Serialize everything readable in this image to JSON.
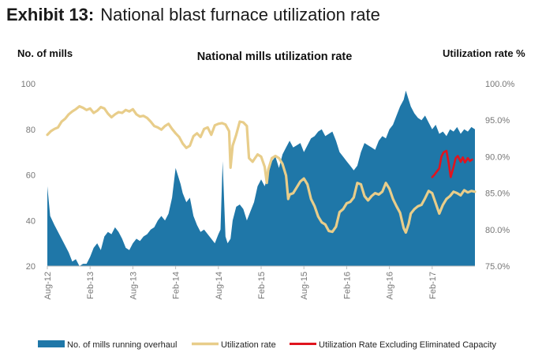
{
  "exhibit_label": "Exhibit 13:",
  "exhibit_title": "National blast furnace utilization rate",
  "chart_data": {
    "type": "area+line",
    "title": "National mills utilization rate",
    "left_axis_label": "No. of mills",
    "right_axis_label": "Utilization rate %",
    "left_ylim": [
      20,
      100
    ],
    "left_ticks": [
      "100",
      "80",
      "60",
      "40",
      "20"
    ],
    "right_ylim": [
      75,
      100
    ],
    "right_ticks": [
      "100.0%",
      "95.0%",
      "90.0%",
      "85.0%",
      "80.0%",
      "75.0%"
    ],
    "x_range": [
      0,
      60
    ],
    "x_ticks": [
      {
        "x": 0,
        "label": "Aug-12"
      },
      {
        "x": 6,
        "label": "Feb-13"
      },
      {
        "x": 12,
        "label": "Aug-13"
      },
      {
        "x": 18,
        "label": "Feb-14"
      },
      {
        "x": 24,
        "label": "Aug-14"
      },
      {
        "x": 30,
        "label": "Feb-15"
      },
      {
        "x": 36,
        "label": "Aug-15"
      },
      {
        "x": 42,
        "label": "Feb-16"
      },
      {
        "x": 48,
        "label": "Aug-16"
      },
      {
        "x": 54,
        "label": "Feb-17"
      }
    ],
    "series": [
      {
        "name": "No. of mills running overhaul",
        "axis": "left",
        "kind": "area",
        "color": "#1f77a8",
        "points": [
          [
            0,
            55
          ],
          [
            0.4,
            42
          ],
          [
            1,
            38
          ],
          [
            2,
            32
          ],
          [
            3,
            26
          ],
          [
            3.5,
            22
          ],
          [
            4,
            23
          ],
          [
            4.5,
            20
          ],
          [
            5,
            21
          ],
          [
            5.5,
            21
          ],
          [
            6,
            24
          ],
          [
            6.5,
            28
          ],
          [
            7,
            30
          ],
          [
            7.5,
            27
          ],
          [
            8,
            33
          ],
          [
            8.5,
            35
          ],
          [
            9,
            34
          ],
          [
            9.5,
            37
          ],
          [
            10,
            35
          ],
          [
            10.5,
            32
          ],
          [
            11,
            28
          ],
          [
            11.5,
            27
          ],
          [
            12,
            30
          ],
          [
            12.5,
            32
          ],
          [
            13,
            31
          ],
          [
            13.5,
            33
          ],
          [
            14,
            34
          ],
          [
            14.5,
            36
          ],
          [
            15,
            37
          ],
          [
            15.5,
            40
          ],
          [
            16,
            42
          ],
          [
            16.5,
            40
          ],
          [
            17,
            43
          ],
          [
            17.5,
            50
          ],
          [
            18,
            63
          ],
          [
            18.3,
            60
          ],
          [
            18.7,
            56
          ],
          [
            19,
            52
          ],
          [
            19.5,
            48
          ],
          [
            20,
            50
          ],
          [
            20.5,
            42
          ],
          [
            21,
            38
          ],
          [
            21.5,
            35
          ],
          [
            22,
            36
          ],
          [
            22.5,
            34
          ],
          [
            23,
            32
          ],
          [
            23.5,
            30
          ],
          [
            24,
            34
          ],
          [
            24.3,
            36
          ],
          [
            24.6,
            66
          ],
          [
            25,
            33
          ],
          [
            25.3,
            30
          ],
          [
            25.7,
            32
          ],
          [
            26,
            40
          ],
          [
            26.5,
            46
          ],
          [
            27,
            47
          ],
          [
            27.5,
            45
          ],
          [
            28,
            40
          ],
          [
            28.5,
            44
          ],
          [
            29,
            48
          ],
          [
            29.5,
            55
          ],
          [
            30,
            58
          ],
          [
            30.5,
            55
          ],
          [
            31,
            60
          ],
          [
            31.5,
            66
          ],
          [
            32,
            68
          ],
          [
            32.5,
            63
          ],
          [
            33,
            69
          ],
          [
            33.5,
            72
          ],
          [
            34,
            75
          ],
          [
            34.5,
            72
          ],
          [
            35,
            73
          ],
          [
            35.5,
            74
          ],
          [
            36,
            70
          ],
          [
            36.5,
            73
          ],
          [
            37,
            76
          ],
          [
            37.5,
            77
          ],
          [
            38,
            79
          ],
          [
            38.5,
            80
          ],
          [
            39,
            77
          ],
          [
            39.5,
            78
          ],
          [
            40,
            79
          ],
          [
            40.5,
            75
          ],
          [
            41,
            70
          ],
          [
            41.5,
            68
          ],
          [
            42,
            66
          ],
          [
            42.5,
            64
          ],
          [
            43,
            62
          ],
          [
            43.5,
            64
          ],
          [
            44,
            70
          ],
          [
            44.5,
            74
          ],
          [
            45,
            73
          ],
          [
            45.5,
            72
          ],
          [
            46,
            71
          ],
          [
            46.5,
            75
          ],
          [
            47,
            77
          ],
          [
            47.5,
            76
          ],
          [
            48,
            80
          ],
          [
            48.5,
            82
          ],
          [
            49,
            86
          ],
          [
            49.5,
            90
          ],
          [
            50,
            93
          ],
          [
            50.3,
            97
          ],
          [
            50.7,
            93
          ],
          [
            51,
            90
          ],
          [
            51.5,
            87
          ],
          [
            52,
            85
          ],
          [
            52.5,
            84
          ],
          [
            53,
            86
          ],
          [
            53.5,
            83
          ],
          [
            54,
            80
          ],
          [
            54.5,
            82
          ],
          [
            55,
            78
          ],
          [
            55.5,
            79
          ],
          [
            56,
            77
          ],
          [
            56.5,
            80
          ],
          [
            57,
            79
          ],
          [
            57.5,
            81
          ],
          [
            58,
            78
          ],
          [
            58.5,
            80
          ],
          [
            59,
            79
          ],
          [
            59.5,
            81
          ],
          [
            60,
            80
          ]
        ]
      },
      {
        "name": "Utilization rate",
        "axis": "right",
        "kind": "line",
        "color": "#e8cd8a",
        "points": [
          [
            0,
            93
          ],
          [
            0.5,
            93.5
          ],
          [
            1,
            93.8
          ],
          [
            1.5,
            94
          ],
          [
            2,
            94.8
          ],
          [
            2.5,
            95.2
          ],
          [
            3,
            95.8
          ],
          [
            3.5,
            96.2
          ],
          [
            4,
            96.5
          ],
          [
            4.5,
            96.9
          ],
          [
            5,
            96.7
          ],
          [
            5.5,
            96.4
          ],
          [
            6,
            96.6
          ],
          [
            6.5,
            96.0
          ],
          [
            7,
            96.3
          ],
          [
            7.5,
            96.8
          ],
          [
            8,
            96.6
          ],
          [
            8.5,
            95.9
          ],
          [
            9,
            95.4
          ],
          [
            9.5,
            95.8
          ],
          [
            10,
            96.1
          ],
          [
            10.5,
            96.0
          ],
          [
            11,
            96.4
          ],
          [
            11.5,
            96.2
          ],
          [
            12,
            96.5
          ],
          [
            12.5,
            95.8
          ],
          [
            13,
            95.5
          ],
          [
            13.5,
            95.6
          ],
          [
            14,
            95.3
          ],
          [
            14.5,
            94.8
          ],
          [
            15,
            94.2
          ],
          [
            15.5,
            94.0
          ],
          [
            16,
            93.7
          ],
          [
            16.5,
            94.2
          ],
          [
            17,
            94.5
          ],
          [
            17.5,
            93.8
          ],
          [
            18,
            93.2
          ],
          [
            18.5,
            92.7
          ],
          [
            19,
            91.8
          ],
          [
            19.5,
            91.2
          ],
          [
            20,
            91.5
          ],
          [
            20.5,
            92.8
          ],
          [
            21,
            93.2
          ],
          [
            21.5,
            92.7
          ],
          [
            22,
            93.8
          ],
          [
            22.5,
            94.0
          ],
          [
            23,
            93.0
          ],
          [
            23.5,
            94.3
          ],
          [
            24,
            94.5
          ],
          [
            24.5,
            94.6
          ],
          [
            25,
            94.4
          ],
          [
            25.5,
            93.5
          ],
          [
            25.7,
            88.5
          ],
          [
            26,
            91.5
          ],
          [
            26.5,
            93.0
          ],
          [
            27,
            94.8
          ],
          [
            27.5,
            94.7
          ],
          [
            28,
            94.2
          ],
          [
            28.3,
            89.8
          ],
          [
            28.8,
            89.3
          ],
          [
            29,
            89.6
          ],
          [
            29.5,
            90.3
          ],
          [
            30,
            90.0
          ],
          [
            30.5,
            88.6
          ],
          [
            30.8,
            86.4
          ],
          [
            31,
            88.2
          ],
          [
            31.5,
            89.8
          ],
          [
            32,
            90.1
          ],
          [
            32.5,
            89.8
          ],
          [
            33,
            89.0
          ],
          [
            33.5,
            87.4
          ],
          [
            33.8,
            84.2
          ],
          [
            34,
            84.8
          ],
          [
            34.5,
            85.0
          ],
          [
            35,
            85.8
          ],
          [
            35.5,
            86.6
          ],
          [
            36,
            87.0
          ],
          [
            36.5,
            86.2
          ],
          [
            37,
            84.2
          ],
          [
            37.5,
            83.2
          ],
          [
            38,
            81.8
          ],
          [
            38.5,
            81.0
          ],
          [
            39,
            80.7
          ],
          [
            39.5,
            79.8
          ],
          [
            40,
            79.7
          ],
          [
            40.5,
            80.4
          ],
          [
            41,
            82.4
          ],
          [
            41.5,
            82.8
          ],
          [
            42,
            83.6
          ],
          [
            42.5,
            83.8
          ],
          [
            43,
            84.4
          ],
          [
            43.5,
            86.4
          ],
          [
            44,
            86.2
          ],
          [
            44.5,
            84.6
          ],
          [
            45,
            84.0
          ],
          [
            45.5,
            84.6
          ],
          [
            46,
            85.0
          ],
          [
            46.5,
            84.8
          ],
          [
            47,
            85.2
          ],
          [
            47.5,
            86.4
          ],
          [
            48,
            85.6
          ],
          [
            48.5,
            84.2
          ],
          [
            49,
            83.2
          ],
          [
            49.5,
            82.3
          ],
          [
            50,
            80.2
          ],
          [
            50.3,
            79.6
          ],
          [
            50.7,
            80.8
          ],
          [
            51,
            82.2
          ],
          [
            51.5,
            82.8
          ],
          [
            52,
            83.2
          ],
          [
            52.5,
            83.4
          ],
          [
            53,
            84.3
          ],
          [
            53.5,
            85.3
          ],
          [
            54,
            85.0
          ],
          [
            54.5,
            83.6
          ],
          [
            55,
            82.2
          ],
          [
            55.5,
            83.4
          ],
          [
            56,
            84.2
          ],
          [
            56.5,
            84.6
          ],
          [
            57,
            85.2
          ],
          [
            57.5,
            85.0
          ],
          [
            58,
            84.7
          ],
          [
            58.5,
            85.4
          ],
          [
            59,
            85.1
          ],
          [
            59.5,
            85.3
          ],
          [
            60,
            85.2
          ]
        ]
      },
      {
        "name": "Utilization Rate Excluding Eliminated Capacity",
        "axis": "right",
        "kind": "line",
        "color": "#e0141e",
        "points": [
          [
            54.0,
            87.2
          ],
          [
            54.3,
            87.5
          ],
          [
            54.6,
            87.9
          ],
          [
            55.0,
            88.4
          ],
          [
            55.3,
            90.0
          ],
          [
            55.6,
            90.6
          ],
          [
            56.0,
            90.8
          ],
          [
            56.3,
            89.2
          ],
          [
            56.6,
            87.2
          ],
          [
            57.0,
            88.6
          ],
          [
            57.3,
            89.8
          ],
          [
            57.6,
            90.1
          ],
          [
            58.0,
            89.3
          ],
          [
            58.3,
            89.9
          ],
          [
            58.6,
            89.2
          ],
          [
            59.0,
            89.8
          ],
          [
            59.3,
            89.4
          ],
          [
            59.6,
            89.6
          ]
        ]
      }
    ]
  }
}
